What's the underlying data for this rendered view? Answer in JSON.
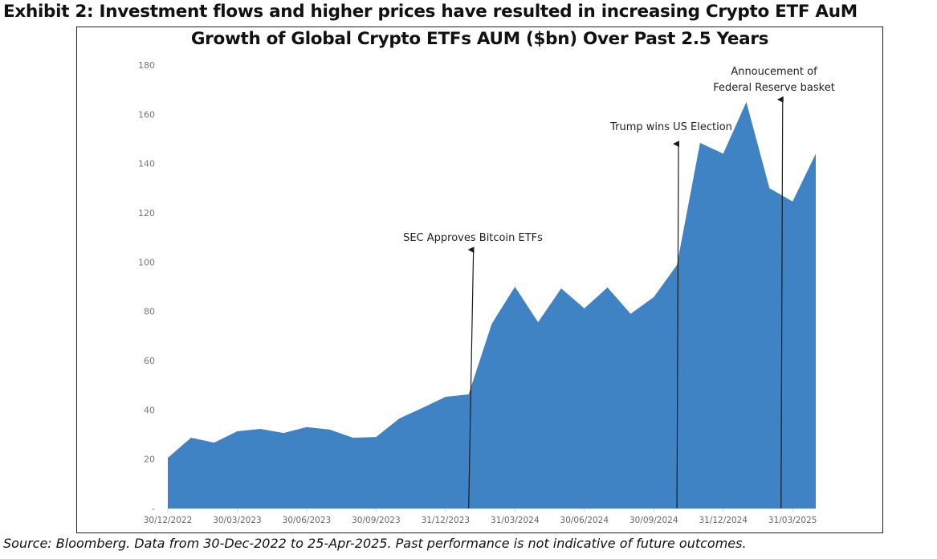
{
  "exhibit_title": "Exhibit 2: Investment flows and higher prices have resulted in increasing Crypto ETF AuM",
  "source_note": "Source: Bloomberg. Data from 30-Dec-2022 to 25-Apr-2025.  Past performance is not indicative of future outcomes.",
  "colors": {
    "area": "#3F83C5",
    "annotation_line": "#1a1a1a",
    "frame": "#222222"
  },
  "chart_data": {
    "type": "area",
    "title": "Growth of Global Crypto ETFs AUM ($bn) Over Past 2.5 Years",
    "xlabel": "",
    "ylabel": "",
    "ylim": [
      0,
      180
    ],
    "yticks": [
      0,
      20,
      40,
      60,
      80,
      100,
      120,
      140,
      160,
      180
    ],
    "ytick_labels": [
      "-",
      "20",
      "40",
      "60",
      "80",
      "100",
      "120",
      "140",
      "160",
      "180"
    ],
    "grid": false,
    "legend": "none",
    "x_tick_labels": [
      "30/12/2022",
      "30/03/2023",
      "30/06/2023",
      "30/09/2023",
      "31/12/2023",
      "31/03/2024",
      "30/06/2024",
      "30/09/2024",
      "31/12/2024",
      "31/03/2025"
    ],
    "x_tick_index": [
      0,
      3,
      6,
      9,
      12,
      15,
      18,
      21,
      24,
      27
    ],
    "series": [
      {
        "name": "Global Crypto ETFs AUM ($bn)",
        "values": [
          20.5,
          28.7,
          26.7,
          31.3,
          32.3,
          30.6,
          33.0,
          32.0,
          28.7,
          29.0,
          36.5,
          40.8,
          45.3,
          46.3,
          75.0,
          90.0,
          75.6,
          89.3,
          81.2,
          89.7,
          79.0,
          85.8,
          98.8,
          148.4,
          144.0,
          165.0,
          130.0,
          124.6,
          144.0
        ]
      }
    ],
    "annotations": [
      {
        "lines": [
          "SEC Approves Bitcoin ETFs"
        ],
        "x_index": 13.0,
        "arrow_top_value": 105
      },
      {
        "lines": [
          "Trump wins US Election"
        ],
        "x_index": 22.0,
        "arrow_top_value": 148
      },
      {
        "lines": [
          "Annoucement of",
          "Federal Reserve basket"
        ],
        "x_index": 26.5,
        "arrow_top_value": 166
      }
    ]
  }
}
